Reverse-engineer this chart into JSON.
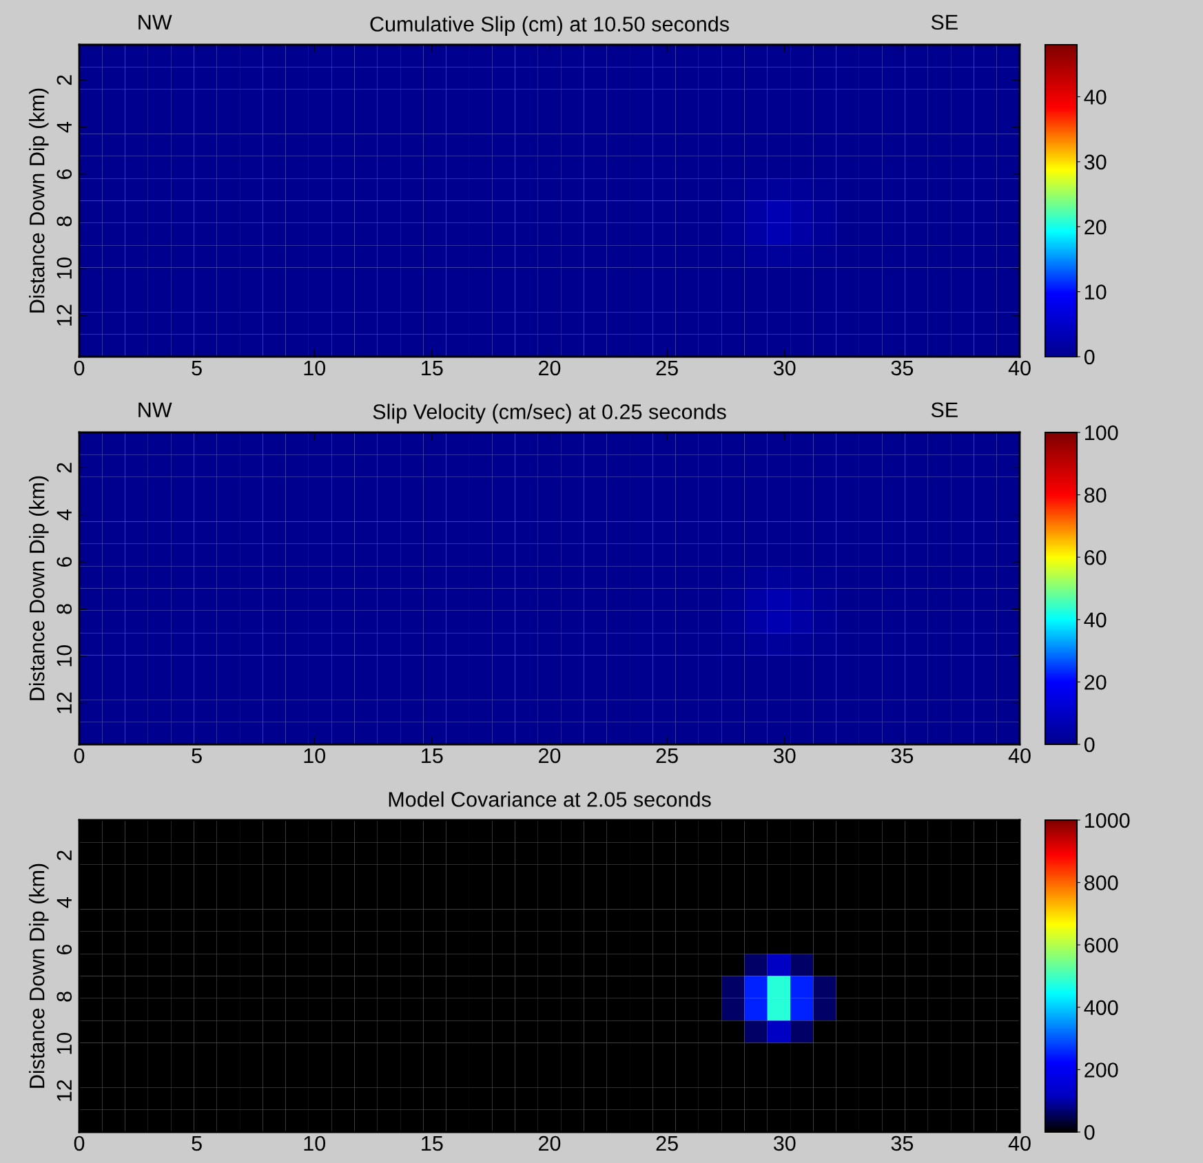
{
  "chart_data": [
    {
      "type": "heatmap",
      "title": "Cumulative Slip (cm) at 10.50 seconds",
      "ylabel": "Distance Down Dip (km)",
      "annotations": [
        "NW",
        "SE"
      ],
      "xlim": [
        0,
        40
      ],
      "xticks": [
        0,
        5,
        10,
        15,
        20,
        25,
        30,
        35,
        40
      ],
      "ylim": [
        13.75,
        0.5
      ],
      "yticks": [
        2,
        4,
        6,
        8,
        10,
        12
      ],
      "clim": [
        0,
        48
      ],
      "cticks": [
        0,
        10,
        20,
        30,
        40
      ],
      "colors": [
        "#00008f",
        "#0000ff",
        "#00ffff",
        "#ffff00",
        "#ff0000",
        "#800000"
      ],
      "cells": [
        [
          0,
          0,
          0,
          0,
          0,
          0,
          0,
          0,
          0,
          0,
          0,
          0,
          0,
          0,
          0,
          0,
          0,
          0,
          0,
          0,
          0,
          0,
          0,
          0,
          0,
          0,
          0,
          0,
          0,
          0,
          0,
          0,
          0,
          0,
          0,
          0,
          0,
          0,
          0,
          0,
          0
        ],
        [
          0,
          0,
          0,
          0,
          0,
          0,
          0,
          0,
          0,
          0,
          0,
          0,
          0,
          0,
          0,
          0,
          0,
          0,
          0,
          0,
          0,
          0,
          0,
          0,
          0,
          0,
          0,
          0,
          0,
          0,
          0,
          0,
          0,
          0,
          0,
          0,
          0,
          0,
          0,
          0,
          0
        ],
        [
          0,
          0,
          0,
          0,
          0,
          0,
          0,
          0,
          0,
          0,
          0,
          0,
          0,
          0,
          0,
          0,
          0,
          0,
          0,
          0,
          0,
          0,
          0,
          0,
          0,
          0,
          0,
          0,
          0,
          0,
          0,
          0,
          0,
          0,
          0,
          0,
          0,
          0,
          0,
          0,
          0
        ],
        [
          0,
          0,
          0,
          0,
          0,
          0,
          0,
          0,
          0,
          0,
          0,
          0,
          0,
          0,
          0,
          0,
          0,
          0,
          0,
          0,
          0,
          0,
          0,
          0,
          0,
          0,
          0,
          0,
          0,
          0,
          0,
          0,
          0,
          0,
          0,
          0,
          0,
          0,
          0,
          0,
          0
        ],
        [
          0,
          0,
          0,
          0,
          0,
          0,
          0,
          0,
          0,
          0,
          0,
          0,
          0,
          0,
          0,
          0,
          0,
          0,
          0,
          0,
          0,
          0,
          0,
          0,
          0,
          0,
          0,
          0,
          0,
          0,
          0,
          0,
          0,
          0,
          0,
          0,
          0,
          0,
          0,
          0,
          0
        ],
        [
          0,
          0,
          0,
          0,
          0,
          0,
          0,
          0,
          0,
          0,
          0,
          0,
          0,
          0,
          0,
          0,
          0,
          0,
          0,
          0,
          0,
          0,
          0,
          0,
          0,
          0,
          0,
          0,
          0,
          0,
          0,
          0,
          0,
          0,
          0,
          0,
          0,
          0,
          0,
          0,
          0
        ],
        [
          0,
          0,
          0,
          0,
          0,
          0,
          0,
          0,
          0,
          0,
          0,
          0,
          0,
          0,
          0,
          0,
          0,
          0,
          0,
          0,
          0,
          0,
          0,
          0,
          0,
          0,
          0,
          0,
          0.3,
          0.8,
          1,
          0.8,
          0.3,
          0,
          0,
          0,
          0,
          0,
          0,
          0,
          0
        ],
        [
          0,
          0,
          0,
          0,
          0,
          0,
          0,
          0,
          0,
          0,
          0,
          0,
          0,
          0,
          0,
          0,
          0,
          0,
          0,
          0,
          0,
          0,
          0,
          0,
          0,
          0,
          0,
          0,
          0.8,
          2,
          3,
          2,
          0.8,
          0,
          0,
          0,
          0,
          0,
          0,
          0,
          0
        ],
        [
          0,
          0,
          0,
          0,
          0,
          0,
          0,
          0,
          0,
          0,
          0,
          0,
          0,
          0,
          0,
          0,
          0,
          0,
          0,
          0,
          0,
          0,
          0,
          0,
          0,
          0,
          0,
          0,
          0.8,
          2,
          3,
          2,
          0.8,
          0,
          0,
          0,
          0,
          0,
          0,
          0,
          0
        ],
        [
          0,
          0,
          0,
          0,
          0,
          0,
          0,
          0,
          0,
          0,
          0,
          0,
          0,
          0,
          0,
          0,
          0,
          0,
          0,
          0,
          0,
          0,
          0,
          0,
          0,
          0,
          0,
          0,
          0.3,
          0.8,
          1,
          0.8,
          0.3,
          0,
          0,
          0,
          0,
          0,
          0,
          0,
          0
        ],
        [
          0,
          0,
          0,
          0,
          0,
          0,
          0,
          0,
          0,
          0,
          0,
          0,
          0,
          0,
          0,
          0,
          0,
          0,
          0,
          0,
          0,
          0,
          0,
          0,
          0,
          0,
          0,
          0,
          0,
          0,
          0,
          0,
          0,
          0,
          0,
          0,
          0,
          0,
          0,
          0,
          0
        ],
        [
          0,
          0,
          0,
          0,
          0,
          0,
          0,
          0,
          0,
          0,
          0,
          0,
          0,
          0,
          0,
          0,
          0,
          0,
          0,
          0,
          0,
          0,
          0,
          0,
          0,
          0,
          0,
          0,
          0,
          0,
          0,
          0,
          0,
          0,
          0,
          0,
          0,
          0,
          0,
          0,
          0
        ],
        [
          0,
          0,
          0,
          0,
          0,
          0,
          0,
          0,
          0,
          0,
          0,
          0,
          0,
          0,
          0,
          0,
          0,
          0,
          0,
          0,
          0,
          0,
          0,
          0,
          0,
          0,
          0,
          0,
          0,
          0,
          0,
          0,
          0,
          0,
          0,
          0,
          0,
          0,
          0,
          0,
          0
        ],
        [
          0,
          0,
          0,
          0,
          0,
          0,
          0,
          0,
          0,
          0,
          0,
          0,
          0,
          0,
          0,
          0,
          0,
          0,
          0,
          0,
          0,
          0,
          0,
          0,
          0,
          0,
          0,
          0,
          0,
          0,
          0,
          0,
          0,
          0,
          0,
          0,
          0,
          0,
          0,
          0,
          0
        ]
      ]
    },
    {
      "type": "heatmap",
      "title": "Slip Velocity (cm/sec) at 0.25 seconds",
      "ylabel": "Distance Down Dip (km)",
      "annotations": [
        "NW",
        "SE"
      ],
      "xlim": [
        0,
        40
      ],
      "xticks": [
        0,
        5,
        10,
        15,
        20,
        25,
        30,
        35,
        40
      ],
      "ylim": [
        13.75,
        0.5
      ],
      "yticks": [
        2,
        4,
        6,
        8,
        10,
        12
      ],
      "clim": [
        0,
        100
      ],
      "cticks": [
        0,
        20,
        40,
        60,
        80,
        100
      ],
      "colors": [
        "#00008f",
        "#0000ff",
        "#00ffff",
        "#ffff00",
        "#ff0000",
        "#800000"
      ],
      "cells": [
        [
          0,
          0,
          0,
          0,
          0,
          0,
          0,
          0,
          0,
          0,
          0,
          0,
          0,
          0,
          0,
          0,
          0,
          0,
          0,
          0,
          0,
          0,
          0,
          0,
          0,
          0,
          0,
          0,
          0,
          0,
          0,
          0,
          0,
          0,
          0,
          0,
          0,
          0,
          0,
          0,
          0
        ],
        [
          0,
          0,
          0,
          0,
          0,
          0,
          0,
          0,
          0,
          0,
          0,
          0,
          0,
          0,
          0,
          0,
          0,
          0,
          0,
          0,
          0,
          0,
          0,
          0,
          0,
          0,
          0,
          0,
          0,
          0,
          0,
          0,
          0,
          0,
          0,
          0,
          0,
          0,
          0,
          0,
          0
        ],
        [
          0,
          0,
          0,
          0,
          0,
          0,
          0,
          0,
          0,
          0,
          0,
          0,
          0,
          0,
          0,
          0,
          0,
          0,
          0,
          0,
          0,
          0,
          0,
          0,
          0,
          0,
          0,
          0,
          0,
          0,
          0,
          0,
          0,
          0,
          0,
          0,
          0,
          0,
          0,
          0,
          0
        ],
        [
          0,
          0,
          0,
          0,
          0,
          0,
          0,
          0,
          0,
          0,
          0,
          0,
          0,
          0,
          0,
          0,
          0,
          0,
          0,
          0,
          0,
          0,
          0,
          0,
          0,
          0,
          0,
          0,
          0,
          0,
          0,
          0,
          0,
          0,
          0,
          0,
          0,
          0,
          0,
          0,
          0
        ],
        [
          0,
          0,
          0,
          0,
          0,
          0,
          0,
          0,
          0,
          0,
          0,
          0,
          0,
          0,
          0,
          0,
          0,
          0,
          0,
          0,
          0,
          0,
          0,
          0,
          0,
          0,
          0,
          0,
          0,
          0,
          0,
          0,
          0,
          0,
          0,
          0,
          0,
          0,
          0,
          0,
          0
        ],
        [
          0,
          0,
          0,
          0,
          0,
          0,
          0,
          0,
          0,
          0,
          0,
          0,
          0,
          0,
          0,
          0,
          0,
          0,
          0,
          0,
          0,
          0,
          0,
          0,
          0,
          0,
          0,
          0,
          0,
          0,
          0,
          0,
          0,
          0,
          0,
          0,
          0,
          0,
          0,
          0,
          0
        ],
        [
          0,
          0,
          0,
          0,
          0,
          0,
          0,
          0,
          0,
          0,
          0,
          0,
          0,
          0,
          0,
          0,
          0,
          0,
          0,
          0,
          0,
          0,
          0,
          0,
          0,
          0,
          0,
          0,
          0.5,
          1.5,
          2,
          1.5,
          0.5,
          0,
          0,
          0,
          0,
          0,
          0,
          0,
          0
        ],
        [
          0,
          0,
          0,
          0,
          0,
          0,
          0,
          0,
          0,
          0,
          0,
          0,
          0,
          0,
          0,
          0,
          0,
          0,
          0,
          0,
          0,
          0,
          0,
          0,
          0,
          0,
          0,
          0,
          1.5,
          4,
          6,
          4,
          1.5,
          0,
          0,
          0,
          0,
          0,
          0,
          0,
          0
        ],
        [
          0,
          0,
          0,
          0,
          0,
          0,
          0,
          0,
          0,
          0,
          0,
          0,
          0,
          0,
          0,
          0,
          0,
          0,
          0,
          0,
          0,
          0,
          0,
          0,
          0,
          0,
          0,
          0,
          1.5,
          4,
          6,
          4,
          1.5,
          0,
          0,
          0,
          0,
          0,
          0,
          0,
          0
        ],
        [
          0,
          0,
          0,
          0,
          0,
          0,
          0,
          0,
          0,
          0,
          0,
          0,
          0,
          0,
          0,
          0,
          0,
          0,
          0,
          0,
          0,
          0,
          0,
          0,
          0,
          0,
          0,
          0,
          0.5,
          1.5,
          2,
          1.5,
          0.5,
          0,
          0,
          0,
          0,
          0,
          0,
          0,
          0
        ],
        [
          0,
          0,
          0,
          0,
          0,
          0,
          0,
          0,
          0,
          0,
          0,
          0,
          0,
          0,
          0,
          0,
          0,
          0,
          0,
          0,
          0,
          0,
          0,
          0,
          0,
          0,
          0,
          0,
          0,
          0,
          0,
          0,
          0,
          0,
          0,
          0,
          0,
          0,
          0,
          0,
          0
        ],
        [
          0,
          0,
          0,
          0,
          0,
          0,
          0,
          0,
          0,
          0,
          0,
          0,
          0,
          0,
          0,
          0,
          0,
          0,
          0,
          0,
          0,
          0,
          0,
          0,
          0,
          0,
          0,
          0,
          0,
          0,
          0,
          0,
          0,
          0,
          0,
          0,
          0,
          0,
          0,
          0,
          0
        ],
        [
          0,
          0,
          0,
          0,
          0,
          0,
          0,
          0,
          0,
          0,
          0,
          0,
          0,
          0,
          0,
          0,
          0,
          0,
          0,
          0,
          0,
          0,
          0,
          0,
          0,
          0,
          0,
          0,
          0,
          0,
          0,
          0,
          0,
          0,
          0,
          0,
          0,
          0,
          0,
          0,
          0
        ],
        [
          0,
          0,
          0,
          0,
          0,
          0,
          0,
          0,
          0,
          0,
          0,
          0,
          0,
          0,
          0,
          0,
          0,
          0,
          0,
          0,
          0,
          0,
          0,
          0,
          0,
          0,
          0,
          0,
          0,
          0,
          0,
          0,
          0,
          0,
          0,
          0,
          0,
          0,
          0,
          0,
          0
        ]
      ]
    },
    {
      "type": "heatmap",
      "title": "Model Covariance at 2.05 seconds",
      "ylabel": "Distance Down Dip (km)",
      "xlim": [
        0,
        40
      ],
      "xticks": [
        0,
        5,
        10,
        15,
        20,
        25,
        30,
        35,
        40
      ],
      "ylim": [
        13.75,
        0.5
      ],
      "yticks": [
        2,
        4,
        6,
        8,
        10,
        12
      ],
      "clim": [
        0,
        1000
      ],
      "cticks": [
        0,
        200,
        400,
        600,
        800,
        1000
      ],
      "colors": [
        "#000000",
        "#0000c0",
        "#0000ff",
        "#0080ff",
        "#00ffff",
        "#80ff80",
        "#ffff00",
        "#ff8000",
        "#ff0000",
        "#800000"
      ],
      "cells": [
        [
          0,
          0,
          0,
          0,
          0,
          0,
          0,
          0,
          0,
          0,
          0,
          0,
          0,
          0,
          0,
          0,
          0,
          0,
          0,
          0,
          0,
          0,
          0,
          0,
          0,
          0,
          0,
          0,
          0,
          0,
          0,
          0,
          0,
          0,
          0,
          0,
          0,
          0,
          0,
          0,
          0
        ],
        [
          0,
          0,
          0,
          0,
          0,
          0,
          0,
          0,
          0,
          0,
          0,
          0,
          0,
          0,
          0,
          0,
          0,
          0,
          0,
          0,
          0,
          0,
          0,
          0,
          0,
          0,
          0,
          0,
          0,
          0,
          0,
          0,
          0,
          0,
          0,
          0,
          0,
          0,
          0,
          0,
          0
        ],
        [
          0,
          0,
          0,
          0,
          0,
          0,
          0,
          0,
          0,
          0,
          0,
          0,
          0,
          0,
          0,
          0,
          0,
          0,
          0,
          0,
          0,
          0,
          0,
          0,
          0,
          0,
          0,
          0,
          0,
          0,
          0,
          0,
          0,
          0,
          0,
          0,
          0,
          0,
          0,
          0,
          0
        ],
        [
          0,
          0,
          0,
          0,
          0,
          0,
          0,
          0,
          0,
          0,
          0,
          0,
          0,
          0,
          0,
          0,
          0,
          0,
          0,
          0,
          0,
          0,
          0,
          0,
          0,
          0,
          0,
          0,
          0,
          0,
          0,
          0,
          0,
          0,
          0,
          0,
          0,
          0,
          0,
          0,
          0
        ],
        [
          0,
          0,
          0,
          0,
          0,
          0,
          0,
          0,
          0,
          0,
          0,
          0,
          0,
          0,
          0,
          0,
          0,
          0,
          0,
          0,
          0,
          0,
          0,
          0,
          0,
          0,
          0,
          0,
          0,
          0,
          0,
          0,
          0,
          0,
          0,
          0,
          0,
          0,
          0,
          0,
          0
        ],
        [
          0,
          0,
          0,
          0,
          0,
          0,
          0,
          0,
          0,
          0,
          0,
          0,
          0,
          0,
          0,
          0,
          0,
          0,
          0,
          0,
          0,
          0,
          0,
          0,
          0,
          0,
          0,
          0,
          0,
          0,
          0,
          0,
          0,
          0,
          0,
          0,
          0,
          0,
          0,
          0,
          0
        ],
        [
          0,
          0,
          0,
          0,
          0,
          0,
          0,
          0,
          0,
          0,
          0,
          0,
          0,
          0,
          0,
          0,
          0,
          0,
          0,
          0,
          0,
          0,
          0,
          0,
          0,
          0,
          0,
          0,
          0,
          60,
          120,
          60,
          0,
          0,
          0,
          0,
          0,
          0,
          0,
          0,
          0
        ],
        [
          0,
          0,
          0,
          0,
          0,
          0,
          0,
          0,
          0,
          0,
          0,
          0,
          0,
          0,
          0,
          0,
          0,
          0,
          0,
          0,
          0,
          0,
          0,
          0,
          0,
          0,
          0,
          0,
          60,
          250,
          480,
          250,
          60,
          0,
          0,
          0,
          0,
          0,
          0,
          0,
          0
        ],
        [
          0,
          0,
          0,
          0,
          0,
          0,
          0,
          0,
          0,
          0,
          0,
          0,
          0,
          0,
          0,
          0,
          0,
          0,
          0,
          0,
          0,
          0,
          0,
          0,
          0,
          0,
          0,
          0,
          60,
          250,
          480,
          250,
          60,
          0,
          0,
          0,
          0,
          0,
          0,
          0,
          0
        ],
        [
          0,
          0,
          0,
          0,
          0,
          0,
          0,
          0,
          0,
          0,
          0,
          0,
          0,
          0,
          0,
          0,
          0,
          0,
          0,
          0,
          0,
          0,
          0,
          0,
          0,
          0,
          0,
          0,
          0,
          60,
          120,
          60,
          0,
          0,
          0,
          0,
          0,
          0,
          0,
          0,
          0
        ],
        [
          0,
          0,
          0,
          0,
          0,
          0,
          0,
          0,
          0,
          0,
          0,
          0,
          0,
          0,
          0,
          0,
          0,
          0,
          0,
          0,
          0,
          0,
          0,
          0,
          0,
          0,
          0,
          0,
          0,
          0,
          0,
          0,
          0,
          0,
          0,
          0,
          0,
          0,
          0,
          0,
          0
        ],
        [
          0,
          0,
          0,
          0,
          0,
          0,
          0,
          0,
          0,
          0,
          0,
          0,
          0,
          0,
          0,
          0,
          0,
          0,
          0,
          0,
          0,
          0,
          0,
          0,
          0,
          0,
          0,
          0,
          0,
          0,
          0,
          0,
          0,
          0,
          0,
          0,
          0,
          0,
          0,
          0,
          0
        ],
        [
          0,
          0,
          0,
          0,
          0,
          0,
          0,
          0,
          0,
          0,
          0,
          0,
          0,
          0,
          0,
          0,
          0,
          0,
          0,
          0,
          0,
          0,
          0,
          0,
          0,
          0,
          0,
          0,
          0,
          0,
          0,
          0,
          0,
          0,
          0,
          0,
          0,
          0,
          0,
          0,
          0
        ],
        [
          0,
          0,
          0,
          0,
          0,
          0,
          0,
          0,
          0,
          0,
          0,
          0,
          0,
          0,
          0,
          0,
          0,
          0,
          0,
          0,
          0,
          0,
          0,
          0,
          0,
          0,
          0,
          0,
          0,
          0,
          0,
          0,
          0,
          0,
          0,
          0,
          0,
          0,
          0,
          0,
          0
        ]
      ]
    }
  ]
}
